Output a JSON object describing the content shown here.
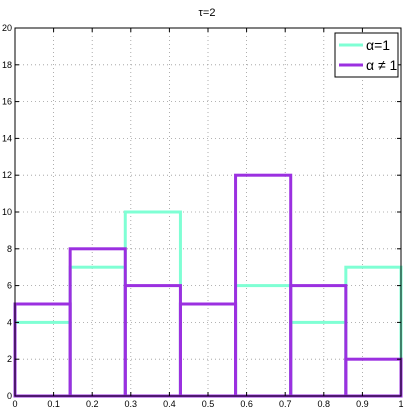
{
  "chart_data": {
    "type": "bar",
    "title": "τ=2",
    "xlabel": "",
    "ylabel": "",
    "xlim": [
      0,
      1
    ],
    "ylim": [
      0,
      20
    ],
    "x_ticks": [
      "0",
      "0.1",
      "0.2",
      "0.3",
      "0.4",
      "0.5",
      "0.6",
      "0.7",
      "0.8",
      "0.9",
      "1"
    ],
    "y_ticks": [
      "0",
      "2",
      "4",
      "6",
      "8",
      "10",
      "12",
      "14",
      "16",
      "18",
      "20"
    ],
    "grid": true,
    "legend_position": "top-right",
    "series": [
      {
        "name": "α=1",
        "color": "#7fffd4",
        "bin_edges": [
          0,
          0.1429,
          0.2857,
          0.4286,
          0.5714,
          0.7143,
          0.8571,
          1
        ],
        "values": [
          4,
          7,
          10,
          5,
          6,
          4,
          7
        ]
      },
      {
        "name": "α ≠ 1",
        "color": "#9b30e0",
        "bin_edges": [
          0,
          0.1429,
          0.2857,
          0.4286,
          0.5714,
          0.7143,
          0.8571,
          1
        ],
        "values": [
          5,
          8,
          6,
          5,
          12,
          6,
          2
        ]
      }
    ]
  }
}
